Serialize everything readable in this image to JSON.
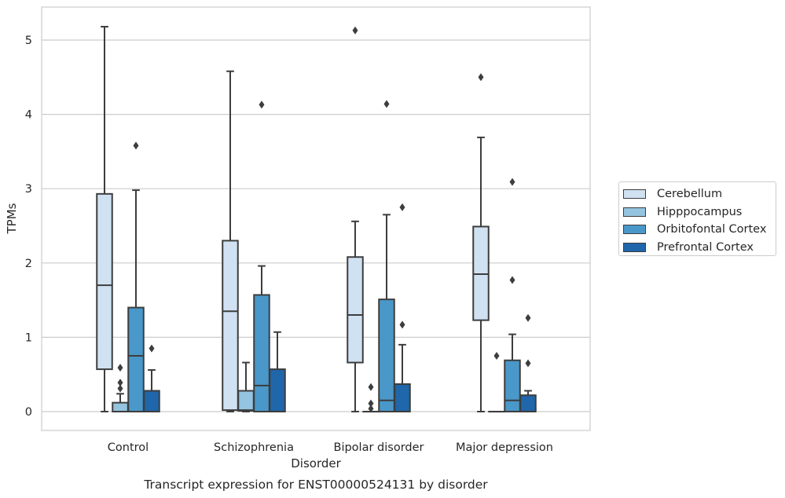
{
  "chart_data": {
    "type": "box",
    "title": "Transcript expression for ENST00000524131 by disorder",
    "xlabel": "Disorder",
    "ylabel": "TPMs",
    "ylim": [
      -0.25,
      5.45
    ],
    "yticks": [
      0,
      1,
      2,
      3,
      4,
      5
    ],
    "categories": [
      "Control",
      "Schizophrenia",
      "Bipolar disorder",
      "Major depression"
    ],
    "legend_position": "right",
    "grid": true,
    "series": [
      {
        "name": "Cerebellum",
        "color": "#d0e1f2",
        "boxes": [
          {
            "q1": 0.57,
            "median": 1.7,
            "q3": 2.93,
            "whisker_low": 0.0,
            "whisker_high": 5.18,
            "outliers": []
          },
          {
            "q1": 0.02,
            "median": 1.35,
            "q3": 2.3,
            "whisker_low": 0.0,
            "whisker_high": 4.58,
            "outliers": []
          },
          {
            "q1": 0.66,
            "median": 1.3,
            "q3": 2.08,
            "whisker_low": 0.0,
            "whisker_high": 2.56,
            "outliers": [
              5.13
            ]
          },
          {
            "q1": 1.23,
            "median": 1.85,
            "q3": 2.49,
            "whisker_low": 0.0,
            "whisker_high": 3.69,
            "outliers": [
              4.5
            ]
          }
        ]
      },
      {
        "name": "Hipppocampus",
        "color": "#94c4df",
        "boxes": [
          {
            "q1": 0.0,
            "median": 0.0,
            "q3": 0.12,
            "whisker_low": 0.0,
            "whisker_high": 0.24,
            "outliers": [
              0.31,
              0.39,
              0.59
            ]
          },
          {
            "q1": 0.01,
            "median": 0.02,
            "q3": 0.28,
            "whisker_low": 0.0,
            "whisker_high": 0.66,
            "outliers": []
          },
          {
            "q1": 0.0,
            "median": 0.0,
            "q3": 0.0,
            "whisker_low": 0.0,
            "whisker_high": 0.0,
            "outliers": [
              0.04,
              0.11,
              0.33
            ]
          },
          {
            "q1": 0.0,
            "median": 0.0,
            "q3": 0.0,
            "whisker_low": 0.0,
            "whisker_high": 0.0,
            "outliers": [
              0.75
            ]
          }
        ]
      },
      {
        "name": "Orbitofontal Cortex",
        "color": "#4a98c9",
        "boxes": [
          {
            "q1": 0.0,
            "median": 0.75,
            "q3": 1.4,
            "whisker_low": 0.0,
            "whisker_high": 2.98,
            "outliers": [
              3.58
            ]
          },
          {
            "q1": 0.0,
            "median": 0.35,
            "q3": 1.57,
            "whisker_low": 0.0,
            "whisker_high": 1.96,
            "outliers": [
              4.13
            ]
          },
          {
            "q1": 0.0,
            "median": 0.15,
            "q3": 1.51,
            "whisker_low": 0.0,
            "whisker_high": 2.65,
            "outliers": [
              4.14
            ]
          },
          {
            "q1": 0.0,
            "median": 0.15,
            "q3": 0.69,
            "whisker_low": 0.0,
            "whisker_high": 1.04,
            "outliers": [
              1.77,
              3.09
            ]
          }
        ]
      },
      {
        "name": "Prefrontal Cortex",
        "color": "#1f66aa",
        "boxes": [
          {
            "q1": 0.0,
            "median": 0.0,
            "q3": 0.28,
            "whisker_low": 0.0,
            "whisker_high": 0.56,
            "outliers": [
              0.85
            ]
          },
          {
            "q1": 0.0,
            "median": 0.0,
            "q3": 0.57,
            "whisker_low": 0.0,
            "whisker_high": 1.07,
            "outliers": []
          },
          {
            "q1": 0.0,
            "median": 0.0,
            "q3": 0.37,
            "whisker_low": 0.0,
            "whisker_high": 0.9,
            "outliers": [
              1.17,
              2.75
            ]
          },
          {
            "q1": 0.0,
            "median": 0.0,
            "q3": 0.22,
            "whisker_low": 0.0,
            "whisker_high": 0.28,
            "outliers": [
              0.65,
              1.26
            ]
          }
        ]
      }
    ]
  }
}
